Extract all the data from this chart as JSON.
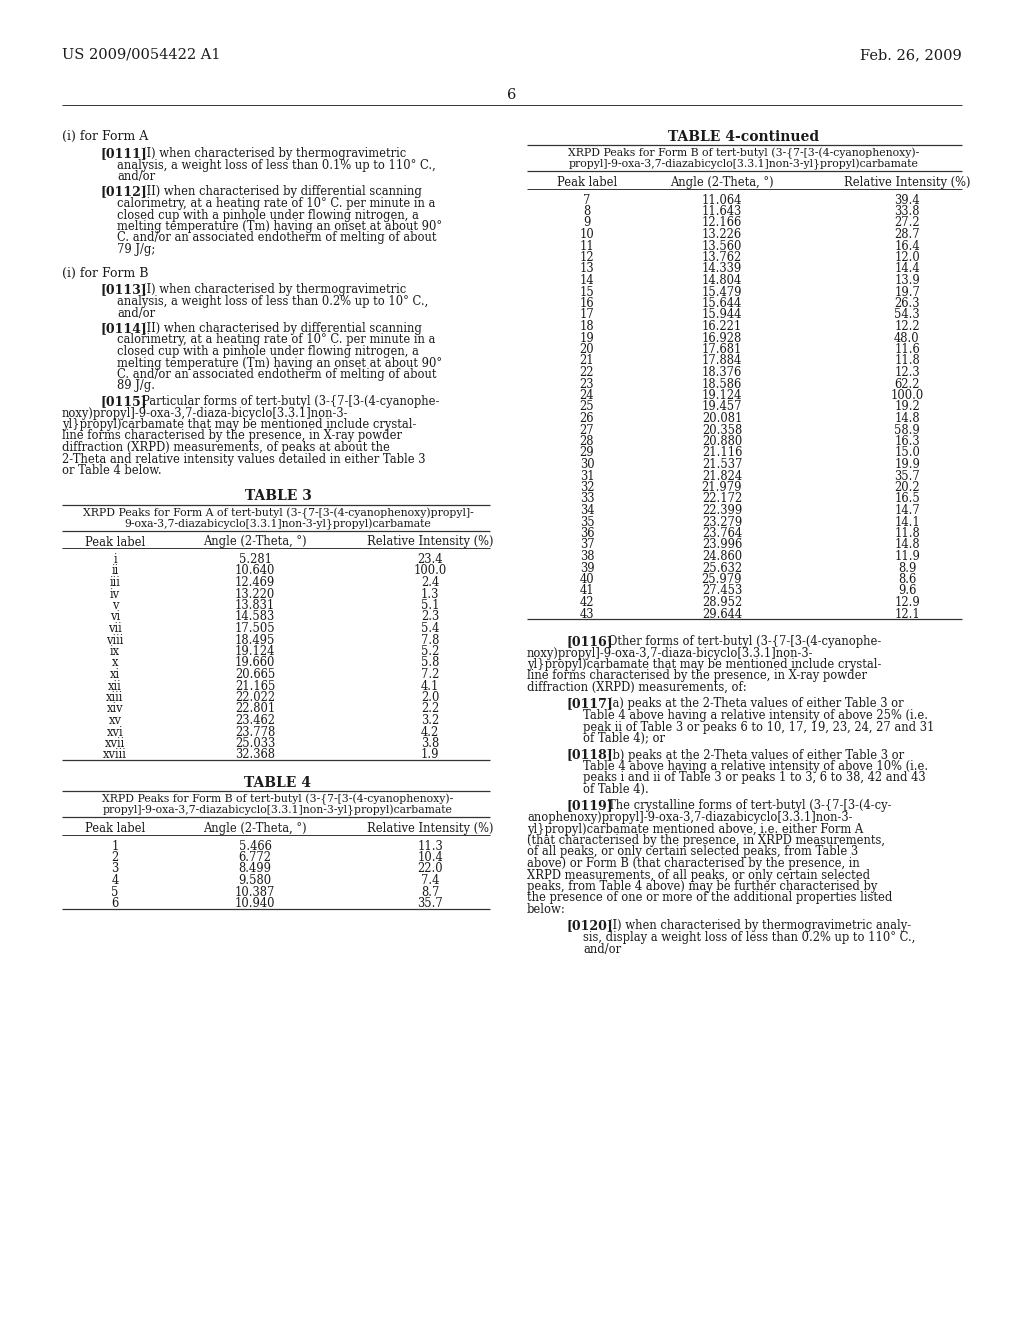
{
  "header_left": "US 2009/0054422 A1",
  "header_right": "Feb. 26, 2009",
  "page_number": "6",
  "bg_color": "#ffffff",
  "text_color": "#1a1a1a",
  "left_col": {
    "section_form_a": "(i) for Form A",
    "section_form_b": "(i) for Form B",
    "table3_title": "TABLE 3",
    "table3_sub1": "XRPD Peaks for Form A of tert-butyl (3-{7-[3-(4-cyanophenoxy)propyl]-",
    "table3_sub2": "9-oxa-3,7-diazabicyclo[3.3.1]non-3-yl}propyl)carbamate",
    "table3_data": [
      [
        "i",
        "5.281",
        "23.4"
      ],
      [
        "ii",
        "10.640",
        "100.0"
      ],
      [
        "iii",
        "12.469",
        "2.4"
      ],
      [
        "iv",
        "13.220",
        "1.3"
      ],
      [
        "v",
        "13.831",
        "5.1"
      ],
      [
        "vi",
        "14.583",
        "2.3"
      ],
      [
        "vii",
        "17.505",
        "5.4"
      ],
      [
        "viii",
        "18.495",
        "7.8"
      ],
      [
        "ix",
        "19.124",
        "5.2"
      ],
      [
        "x",
        "19.660",
        "5.8"
      ],
      [
        "xi",
        "20.665",
        "7.2"
      ],
      [
        "xii",
        "21.165",
        "4.1"
      ],
      [
        "xiii",
        "22.022",
        "2.0"
      ],
      [
        "xiv",
        "22.801",
        "2.2"
      ],
      [
        "xv",
        "23.462",
        "3.2"
      ],
      [
        "xvi",
        "23.778",
        "4.2"
      ],
      [
        "xvii",
        "25.033",
        "3.8"
      ],
      [
        "xviii",
        "32.368",
        "1.9"
      ]
    ],
    "table4_title": "TABLE 4",
    "table4_sub1": "XRPD Peaks for Form B of tert-butyl (3-{7-[3-(4-cyanophenoxy)-",
    "table4_sub2": "propyl]-9-oxa-3,7-diazabicyclo[3.3.1]non-3-yl}propyl)carbamate",
    "table4_data": [
      [
        "1",
        "5.466",
        "11.3"
      ],
      [
        "2",
        "6.772",
        "10.4"
      ],
      [
        "3",
        "8.499",
        "22.0"
      ],
      [
        "4",
        "9.580",
        "7.4"
      ],
      [
        "5",
        "10.387",
        "8.7"
      ],
      [
        "6",
        "10.940",
        "35.7"
      ]
    ]
  },
  "right_col": {
    "table4c_title": "TABLE 4-continued",
    "table4c_sub1": "XRPD Peaks for Form B of tert-butyl (3-{7-[3-(4-cyanophenoxy)-",
    "table4c_sub2": "propyl]-9-oxa-3,7-diazabicyclo[3.3.1]non-3-yl}propyl)carbamate",
    "table4c_data": [
      [
        "7",
        "11.064",
        "39.4"
      ],
      [
        "8",
        "11.643",
        "33.8"
      ],
      [
        "9",
        "12.166",
        "27.2"
      ],
      [
        "10",
        "13.226",
        "28.7"
      ],
      [
        "11",
        "13.560",
        "16.4"
      ],
      [
        "12",
        "13.762",
        "12.0"
      ],
      [
        "13",
        "14.339",
        "14.4"
      ],
      [
        "14",
        "14.804",
        "13.9"
      ],
      [
        "15",
        "15.479",
        "19.7"
      ],
      [
        "16",
        "15.644",
        "26.3"
      ],
      [
        "17",
        "15.944",
        "54.3"
      ],
      [
        "18",
        "16.221",
        "12.2"
      ],
      [
        "19",
        "16.928",
        "48.0"
      ],
      [
        "20",
        "17.681",
        "11.6"
      ],
      [
        "21",
        "17.884",
        "11.8"
      ],
      [
        "22",
        "18.376",
        "12.3"
      ],
      [
        "23",
        "18.586",
        "62.2"
      ],
      [
        "24",
        "19.124",
        "100.0"
      ],
      [
        "25",
        "19.457",
        "19.2"
      ],
      [
        "26",
        "20.081",
        "14.8"
      ],
      [
        "27",
        "20.358",
        "58.9"
      ],
      [
        "28",
        "20.880",
        "16.3"
      ],
      [
        "29",
        "21.116",
        "15.0"
      ],
      [
        "30",
        "21.537",
        "19.9"
      ],
      [
        "31",
        "21.824",
        "35.7"
      ],
      [
        "32",
        "21.979",
        "20.2"
      ],
      [
        "33",
        "22.172",
        "16.5"
      ],
      [
        "34",
        "22.399",
        "14.7"
      ],
      [
        "35",
        "23.279",
        "14.1"
      ],
      [
        "36",
        "23.764",
        "11.8"
      ],
      [
        "37",
        "23.996",
        "14.8"
      ],
      [
        "38",
        "24.860",
        "11.9"
      ],
      [
        "39",
        "25.632",
        "8.9"
      ],
      [
        "40",
        "25.979",
        "8.6"
      ],
      [
        "41",
        "27.453",
        "9.6"
      ],
      [
        "42",
        "28.952",
        "12.9"
      ],
      [
        "43",
        "29.644",
        "12.1"
      ]
    ]
  },
  "col_hdr": [
    "Peak label",
    "Angle (2-Theta, °)",
    "Relative Intensity (%)"
  ]
}
